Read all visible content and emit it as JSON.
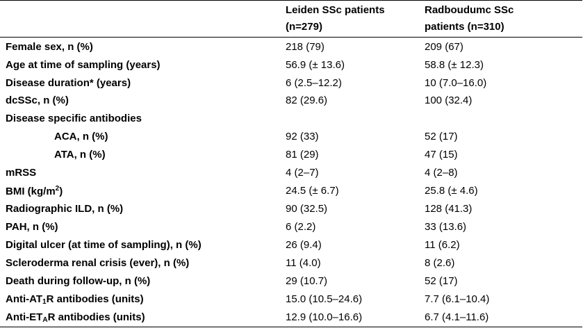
{
  "headers": {
    "col1": "",
    "col2_line1": "Leiden SSc patients",
    "col2_line2": "(n=279)",
    "col3_line1": "Radboudumc SSc",
    "col3_line2": "patients (n=310)"
  },
  "rows": {
    "female_sex": {
      "label": "Female sex, n (%)",
      "leiden": "218 (79)",
      "radboudumc": "209 (67)"
    },
    "age": {
      "label": "Age at time of sampling (years)",
      "leiden": "56.9 (± 13.6)",
      "radboudumc": "58.8 (± 12.3)"
    },
    "disease_duration": {
      "label": "Disease duration* (years)",
      "leiden": "6 (2.5–12.2)",
      "radboudumc": "10 (7.0–16.0)"
    },
    "dcssc": {
      "label": "dcSSc, n (%)",
      "leiden": "82 (29.6)",
      "radboudumc": "100 (32.4)"
    },
    "antibodies_heading": {
      "label": "Disease specific antibodies",
      "leiden": "",
      "radboudumc": ""
    },
    "aca": {
      "label": "ACA, n (%)",
      "leiden": "92 (33)",
      "radboudumc": "52 (17)"
    },
    "ata": {
      "label": "ATA, n (%)",
      "leiden": "81 (29)",
      "radboudumc": "47 (15)"
    },
    "mrss": {
      "label": "mRSS",
      "leiden": "4 (2–7)",
      "radboudumc": "4 (2–8)"
    },
    "bmi": {
      "label_pre": "BMI (kg/m",
      "label_sup": "2",
      "label_post": ")",
      "leiden": "24.5 (± 6.7)",
      "radboudumc": "25.8 (± 4.6)"
    },
    "ild": {
      "label": "Radiographic ILD, n (%)",
      "leiden": "90 (32.5)",
      "radboudumc": "128 (41.3)"
    },
    "pah": {
      "label": "PAH, n (%)",
      "leiden": "6 (2.2)",
      "radboudumc": "33 (13.6)"
    },
    "digital_ulcer": {
      "label": "Digital ulcer (at time of sampling), n (%)",
      "leiden": "26 (9.4)",
      "radboudumc": "11 (6.2)"
    },
    "renal_crisis": {
      "label": "Scleroderma renal crisis (ever), n (%)",
      "leiden": "11 (4.0)",
      "radboudumc": "8 (2.6)"
    },
    "death": {
      "label": "Death during follow-up, n (%)",
      "leiden": "29 (10.7)",
      "radboudumc": "52 (17)"
    },
    "anti_at1r": {
      "label_pre": "Anti-AT",
      "label_sub": "1",
      "label_post": "R antibodies (units)",
      "leiden": "15.0 (10.5–24.6)",
      "radboudumc": "7.7 (6.1–10.4)"
    },
    "anti_etar": {
      "label_pre": "Anti-ET",
      "label_sub": "A",
      "label_post": "R antibodies (units)",
      "leiden": "12.9 (10.0–16.6)",
      "radboudumc": "6.7 (4.1–11.6)"
    }
  }
}
